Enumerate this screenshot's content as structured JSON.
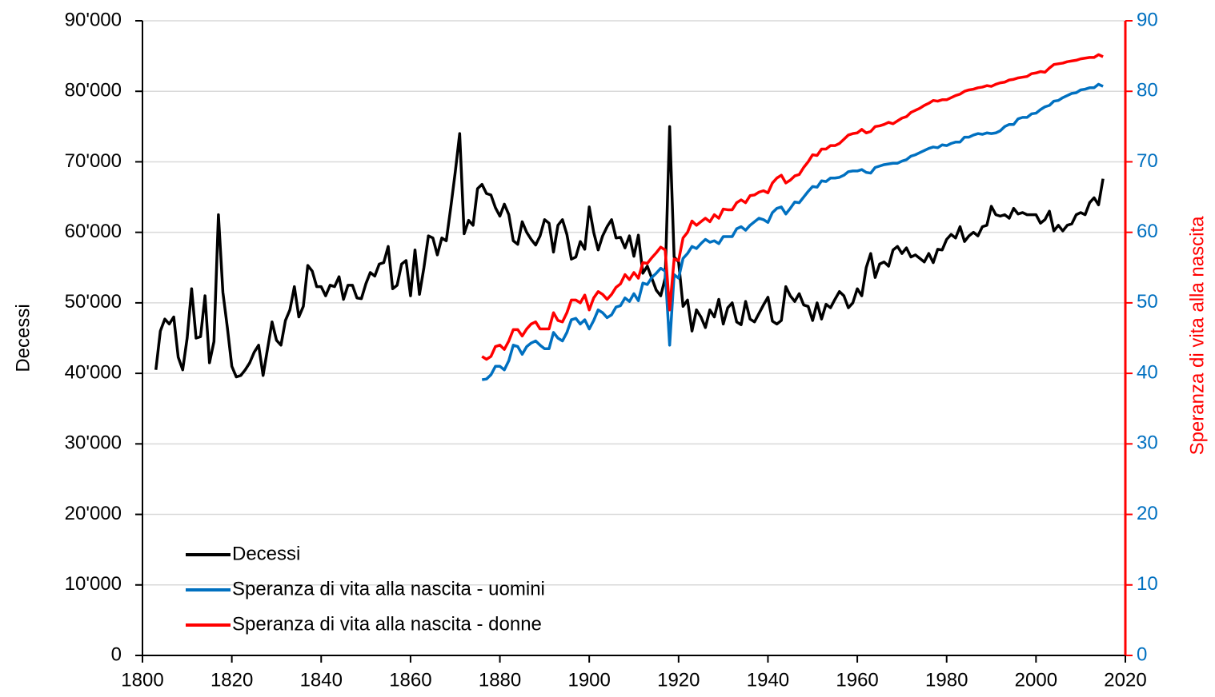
{
  "chart_data": {
    "type": "line",
    "x": [
      1803,
      1804,
      1805,
      1806,
      1807,
      1808,
      1809,
      1810,
      1811,
      1812,
      1813,
      1814,
      1815,
      1816,
      1817,
      1818,
      1819,
      1820,
      1821,
      1822,
      1823,
      1824,
      1825,
      1826,
      1827,
      1828,
      1829,
      1830,
      1831,
      1832,
      1833,
      1834,
      1835,
      1836,
      1837,
      1838,
      1839,
      1840,
      1841,
      1842,
      1843,
      1844,
      1845,
      1846,
      1847,
      1848,
      1849,
      1850,
      1851,
      1852,
      1853,
      1854,
      1855,
      1856,
      1857,
      1858,
      1859,
      1860,
      1861,
      1862,
      1863,
      1864,
      1865,
      1866,
      1867,
      1868,
      1869,
      1870,
      1871,
      1872,
      1873,
      1874,
      1875,
      1876,
      1877,
      1878,
      1879,
      1880,
      1881,
      1882,
      1883,
      1884,
      1885,
      1886,
      1887,
      1888,
      1889,
      1890,
      1891,
      1892,
      1893,
      1894,
      1895,
      1896,
      1897,
      1898,
      1899,
      1900,
      1901,
      1902,
      1903,
      1904,
      1905,
      1906,
      1907,
      1908,
      1909,
      1910,
      1911,
      1912,
      1913,
      1914,
      1915,
      1916,
      1917,
      1918,
      1919,
      1920,
      1921,
      1922,
      1923,
      1924,
      1925,
      1926,
      1927,
      1928,
      1929,
      1930,
      1931,
      1932,
      1933,
      1934,
      1935,
      1936,
      1937,
      1938,
      1939,
      1940,
      1941,
      1942,
      1943,
      1944,
      1945,
      1946,
      1947,
      1948,
      1949,
      1950,
      1951,
      1952,
      1953,
      1954,
      1955,
      1956,
      1957,
      1958,
      1959,
      1960,
      1961,
      1962,
      1963,
      1964,
      1965,
      1966,
      1967,
      1968,
      1969,
      1970,
      1971,
      1972,
      1973,
      1974,
      1975,
      1976,
      1977,
      1978,
      1979,
      1980,
      1981,
      1982,
      1983,
      1984,
      1985,
      1986,
      1987,
      1988,
      1989,
      1990,
      1991,
      1992,
      1993,
      1994,
      1995,
      1996,
      1997,
      1998,
      1999,
      2000,
      2001,
      2002,
      2003,
      2004,
      2005,
      2006,
      2007,
      2008,
      2009,
      2010,
      2011,
      2012,
      2013,
      2014,
      2015
    ],
    "series": [
      {
        "name": "Decessi",
        "color": "#000000",
        "values": [
          40500,
          46000,
          47700,
          47000,
          48000,
          42300,
          40500,
          45000,
          52000,
          45000,
          45200,
          51000,
          41500,
          44500,
          62500,
          51500,
          46500,
          41000,
          39500,
          39700,
          40500,
          41500,
          43000,
          44000,
          39700,
          43500,
          47300,
          44700,
          44000,
          47500,
          49000,
          52300,
          48000,
          49500,
          55300,
          54500,
          52300,
          52300,
          51000,
          52500,
          52300,
          53700,
          50500,
          52500,
          52500,
          50700,
          50600,
          52700,
          54300,
          53800,
          55500,
          55700,
          58000,
          52000,
          52500,
          55500,
          56000,
          51000,
          57500,
          51200,
          55000,
          59500,
          59200,
          56800,
          59200,
          58800,
          63500,
          68500,
          74000,
          59800,
          61700,
          61000,
          66200,
          66800,
          65500,
          65300,
          63500,
          62300,
          64000,
          62500,
          58800,
          58300,
          61500,
          60000,
          59000,
          58200,
          59500,
          61800,
          61300,
          57200,
          61000,
          61800,
          59700,
          56200,
          56500,
          58700,
          57600,
          63600,
          60000,
          57500,
          59500,
          60800,
          61800,
          59200,
          59300,
          57800,
          59500,
          56600,
          59600,
          54200,
          55200,
          53500,
          51800,
          51000,
          53500,
          75000,
          56500,
          55800,
          49500,
          50400,
          46000,
          49000,
          48000,
          46500,
          49000,
          48000,
          50500,
          47000,
          49300,
          50000,
          47300,
          46900,
          50200,
          47700,
          47300,
          48500,
          49700,
          50800,
          47400,
          47000,
          47500,
          52300,
          51000,
          50200,
          51300,
          49700,
          49500,
          47500,
          50000,
          47700,
          49800,
          49300,
          50500,
          51600,
          51000,
          49300,
          50000,
          52000,
          51000,
          55000,
          57000,
          53600,
          55500,
          55800,
          55200,
          57500,
          58000,
          57000,
          57800,
          56500,
          56800,
          56300,
          55800,
          57000,
          55700,
          57600,
          57500,
          59000,
          59700,
          59200,
          60800,
          58700,
          59500,
          60000,
          59500,
          60800,
          61000,
          63700,
          62500,
          62300,
          62500,
          62000,
          63400,
          62600,
          62800,
          62500,
          62500,
          62500,
          61300,
          61800,
          63000,
          60200,
          61000,
          60200,
          61000,
          61200,
          62500,
          62800,
          62500,
          64200,
          64900,
          63900,
          67600
        ]
      },
      {
        "name": "Speranza di vita alla nascita - uomini",
        "color": "#0070c0",
        "axis": "y2",
        "values": [
          null,
          null,
          null,
          null,
          null,
          null,
          null,
          null,
          null,
          null,
          null,
          null,
          null,
          null,
          null,
          null,
          null,
          null,
          null,
          null,
          null,
          null,
          null,
          null,
          null,
          null,
          null,
          null,
          null,
          null,
          null,
          null,
          null,
          null,
          null,
          null,
          null,
          null,
          null,
          null,
          null,
          null,
          null,
          null,
          null,
          null,
          null,
          null,
          null,
          null,
          null,
          null,
          null,
          null,
          null,
          null,
          null,
          null,
          null,
          null,
          null,
          null,
          null,
          null,
          null,
          null,
          null,
          null,
          null,
          null,
          null,
          null,
          null,
          39.1,
          39.2,
          39.8,
          41.0,
          41.0,
          40.5,
          41.8,
          44.0,
          43.8,
          42.7,
          43.8,
          44.3,
          44.6,
          44.0,
          43.5,
          43.5,
          45.8,
          45.0,
          44.6,
          45.8,
          47.6,
          47.8,
          47.0,
          47.6,
          46.3,
          47.5,
          49.0,
          48.6,
          47.9,
          48.3,
          49.4,
          49.6,
          50.7,
          50.2,
          51.3,
          50.3,
          52.8,
          52.6,
          53.6,
          54.2,
          54.9,
          54.5,
          44.0,
          54.0,
          53.5,
          56.3,
          57.0,
          58.0,
          57.7,
          58.4,
          59.0,
          58.6,
          58.8,
          58.4,
          59.4,
          59.4,
          59.4,
          60.5,
          60.8,
          60.3,
          61.0,
          61.5,
          62.0,
          61.8,
          61.4,
          62.8,
          63.4,
          63.6,
          62.6,
          63.4,
          64.3,
          64.2,
          65.0,
          65.8,
          66.5,
          66.4,
          67.3,
          67.2,
          67.7,
          67.7,
          67.8,
          68.1,
          68.6,
          68.7,
          68.7,
          68.9,
          68.5,
          68.4,
          69.2,
          69.4,
          69.6,
          69.7,
          69.8,
          69.8,
          70.1,
          70.3,
          70.8,
          71.0,
          71.3,
          71.6,
          71.9,
          72.1,
          72.0,
          72.4,
          72.3,
          72.6,
          72.8,
          72.8,
          73.5,
          73.5,
          73.8,
          74.0,
          73.9,
          74.1,
          74.0,
          74.1,
          74.4,
          75.0,
          75.3,
          75.3,
          76.1,
          76.3,
          76.3,
          76.8,
          76.9,
          77.4,
          77.8,
          78.0,
          78.6,
          78.7,
          79.1,
          79.4,
          79.7,
          79.8,
          80.2,
          80.3,
          80.5,
          80.5,
          81.0,
          80.7
        ]
      },
      {
        "name": "Speranza di vita alla nascita - donne",
        "color": "#ff0000",
        "axis": "y2",
        "values": [
          null,
          null,
          null,
          null,
          null,
          null,
          null,
          null,
          null,
          null,
          null,
          null,
          null,
          null,
          null,
          null,
          null,
          null,
          null,
          null,
          null,
          null,
          null,
          null,
          null,
          null,
          null,
          null,
          null,
          null,
          null,
          null,
          null,
          null,
          null,
          null,
          null,
          null,
          null,
          null,
          null,
          null,
          null,
          null,
          null,
          null,
          null,
          null,
          null,
          null,
          null,
          null,
          null,
          null,
          null,
          null,
          null,
          null,
          null,
          null,
          null,
          null,
          null,
          null,
          null,
          null,
          null,
          null,
          null,
          null,
          null,
          null,
          null,
          42.4,
          42.0,
          42.4,
          43.8,
          44.0,
          43.4,
          44.6,
          46.2,
          46.2,
          45.3,
          46.3,
          47.0,
          47.3,
          46.3,
          46.3,
          46.3,
          48.6,
          47.5,
          47.3,
          48.6,
          50.4,
          50.4,
          50.0,
          51.1,
          49.0,
          50.7,
          51.6,
          51.2,
          50.5,
          51.2,
          52.2,
          52.7,
          54.0,
          53.3,
          54.3,
          53.5,
          55.7,
          55.6,
          56.4,
          57.1,
          57.9,
          57.5,
          49.0,
          56.2,
          56.0,
          59.2,
          60.0,
          61.6,
          61.0,
          61.5,
          62.0,
          61.5,
          62.5,
          62.0,
          63.3,
          63.2,
          63.2,
          64.2,
          64.6,
          64.2,
          65.2,
          65.3,
          65.7,
          65.9,
          65.6,
          67.0,
          67.7,
          68.1,
          67.0,
          67.4,
          68.0,
          68.2,
          69.2,
          70.0,
          71.0,
          70.9,
          71.8,
          71.8,
          72.3,
          72.3,
          72.6,
          73.2,
          73.8,
          74.0,
          74.1,
          74.6,
          74.1,
          74.3,
          75.0,
          75.1,
          75.3,
          75.6,
          75.4,
          75.8,
          76.2,
          76.4,
          77.0,
          77.3,
          77.6,
          78.0,
          78.3,
          78.7,
          78.6,
          78.8,
          78.8,
          79.1,
          79.4,
          79.6,
          80.0,
          80.2,
          80.3,
          80.5,
          80.6,
          80.8,
          80.7,
          81.0,
          81.2,
          81.3,
          81.6,
          81.7,
          81.9,
          82.0,
          82.1,
          82.5,
          82.6,
          82.8,
          82.7,
          83.3,
          83.8,
          83.9,
          84.0,
          84.2,
          84.3,
          84.4,
          84.6,
          84.7,
          84.8,
          84.8,
          85.2,
          84.9
        ]
      }
    ],
    "xlim": [
      1800,
      2020
    ],
    "xticks": [
      1800,
      1820,
      1840,
      1860,
      1880,
      1900,
      1920,
      1940,
      1960,
      1980,
      2000,
      2020
    ],
    "ylabel": "Decessi",
    "ylim": [
      0,
      90000
    ],
    "yticks": [
      {
        "value": 0,
        "label": "0"
      },
      {
        "value": 10000,
        "label": "10'000"
      },
      {
        "value": 20000,
        "label": "20'000"
      },
      {
        "value": 30000,
        "label": "30'000"
      },
      {
        "value": 40000,
        "label": "40'000"
      },
      {
        "value": 50000,
        "label": "50'000"
      },
      {
        "value": 60000,
        "label": "60'000"
      },
      {
        "value": 70000,
        "label": "70'000"
      },
      {
        "value": 80000,
        "label": "80'000"
      },
      {
        "value": 90000,
        "label": "90'000"
      }
    ],
    "y2label": "Speranza di vita alla nascita",
    "y2lim": [
      0,
      90
    ],
    "y2ticks": [
      0,
      10,
      20,
      30,
      40,
      50,
      60,
      70,
      80,
      90
    ],
    "y2_axis_color": "#ff0000",
    "y2_tick_color": "#0070c0",
    "grid": true,
    "legend": "lower left"
  }
}
